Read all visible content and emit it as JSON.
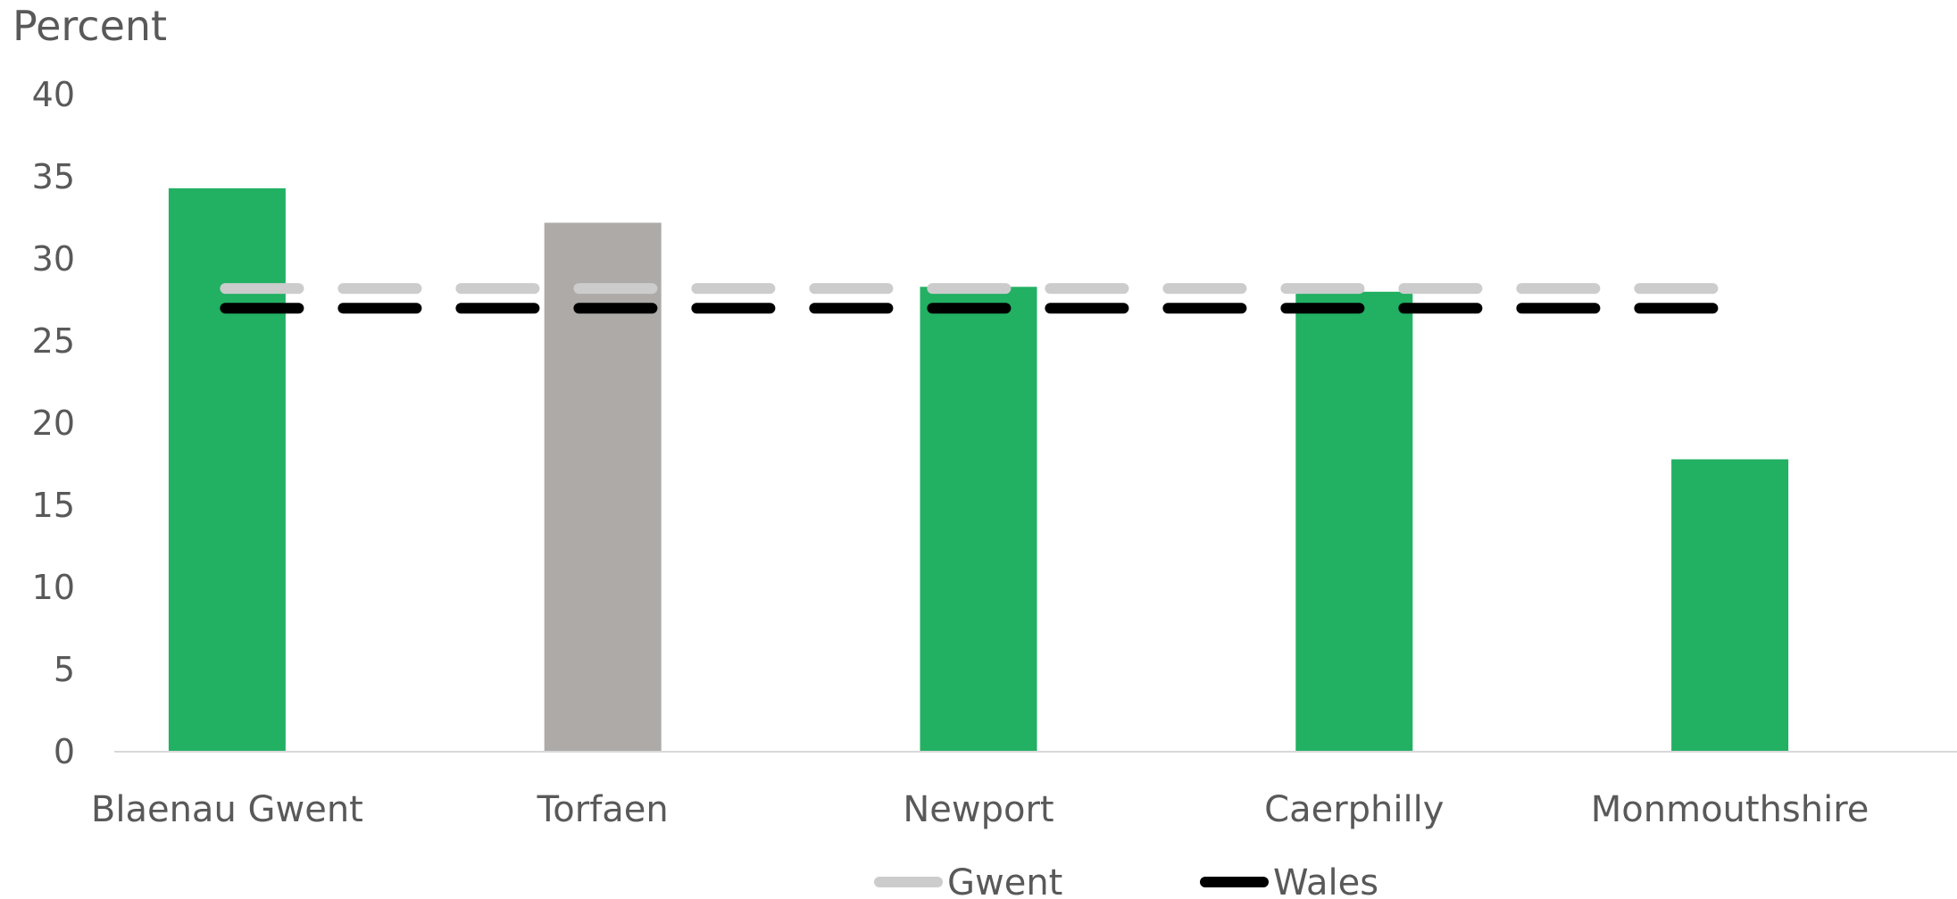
{
  "chart_data": {
    "type": "bar",
    "ylabel": "Percent",
    "ylim": [
      0,
      40
    ],
    "yticks": [
      0,
      5,
      10,
      15,
      20,
      25,
      30,
      35,
      40
    ],
    "categories": [
      "Blaenau Gwent",
      "Torfaen",
      "Newport",
      "Caerphilly",
      "Monmouthshire"
    ],
    "values": [
      34.3,
      32.2,
      28.3,
      28.0,
      17.8
    ],
    "bar_colors": [
      "#22b063",
      "#adaaa8",
      "#22b063",
      "#22b063",
      "#22b063"
    ],
    "reference_lines": [
      {
        "name": "Gwent",
        "value": 28.2,
        "color": "#cccccc",
        "style": "dashed"
      },
      {
        "name": "Wales",
        "value": 27.0,
        "color": "#000000",
        "style": "dashed"
      }
    ],
    "grid": false,
    "legend": "bottom-center"
  }
}
